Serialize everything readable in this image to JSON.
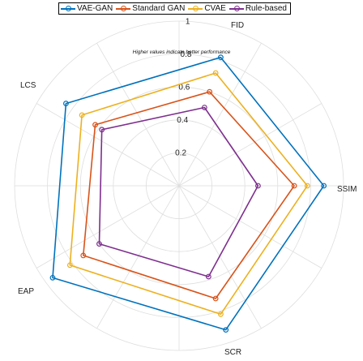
{
  "chart_data": {
    "type": "radar",
    "title": "",
    "annotation": "Higher values indicate better performance",
    "axes": [
      "FID",
      "SSIM",
      "SCR",
      "EAP",
      "LCS"
    ],
    "rlim": [
      0,
      1
    ],
    "radial_ticks": [
      0.2,
      0.4,
      0.6,
      0.8,
      1
    ],
    "radial_tick_labels": [
      "0.2",
      "0.4",
      "0.6",
      "0.8",
      "1"
    ],
    "grid": true,
    "legend_position": "top",
    "series": [
      {
        "name": "VAE-GAN",
        "color": "#0072BD",
        "values": [
          0.82,
          0.88,
          0.92,
          0.95,
          0.85
        ]
      },
      {
        "name": "Standard GAN",
        "color": "#D95319",
        "values": [
          0.6,
          0.7,
          0.72,
          0.72,
          0.63
        ]
      },
      {
        "name": "CVAE",
        "color": "#EDB120",
        "values": [
          0.72,
          0.78,
          0.82,
          0.82,
          0.73
        ]
      },
      {
        "name": "Rule-based",
        "color": "#7E2F8E",
        "values": [
          0.5,
          0.48,
          0.58,
          0.6,
          0.58
        ]
      }
    ]
  }
}
